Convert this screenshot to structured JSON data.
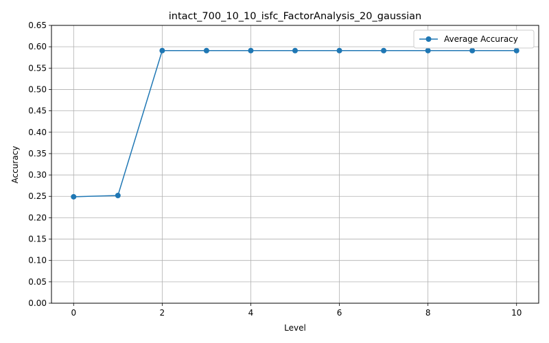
{
  "chart_data": {
    "type": "line",
    "title": "intact_700_10_10_isfc_FactorAnalysis_20_gaussian",
    "xlabel": "Level",
    "ylabel": "Accuracy",
    "x": [
      0,
      1,
      2,
      3,
      4,
      5,
      6,
      7,
      8,
      9,
      10
    ],
    "series": [
      {
        "name": "Average Accuracy",
        "values": [
          0.249,
          0.252,
          0.591,
          0.591,
          0.591,
          0.591,
          0.591,
          0.591,
          0.591,
          0.591,
          0.591
        ],
        "color": "#1f77b4",
        "marker": "circle"
      }
    ],
    "xlim": [
      -0.5,
      10.5
    ],
    "ylim": [
      0,
      0.65
    ],
    "xticks": [
      "0",
      "2",
      "4",
      "6",
      "8",
      "10"
    ],
    "yticks": [
      "0.00",
      "0.05",
      "0.10",
      "0.15",
      "0.20",
      "0.25",
      "0.30",
      "0.35",
      "0.40",
      "0.45",
      "0.50",
      "0.55",
      "0.60",
      "0.65"
    ],
    "grid": true,
    "legend_position": "top-right"
  }
}
